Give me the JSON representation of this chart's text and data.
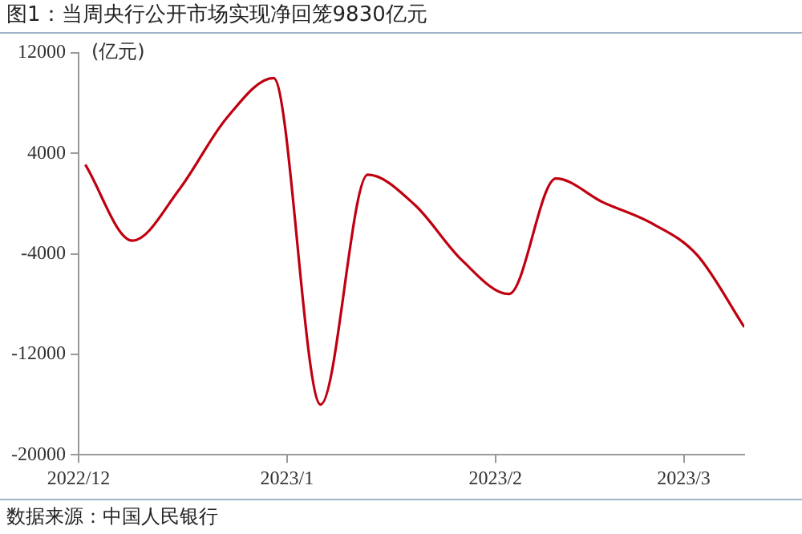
{
  "chart_data": {
    "type": "line",
    "title": "图1：当周央行公开市场实现净回笼9830亿元",
    "ylabel": "(亿元)",
    "annotations": [
      "数据来源：中国人民银行"
    ],
    "x": [
      "2022-12-02",
      "2022-12-09",
      "2022-12-16",
      "2022-12-23",
      "2022-12-30",
      "2023-01-06",
      "2023-01-13",
      "2023-01-20",
      "2023-01-27",
      "2023-02-03",
      "2023-02-10",
      "2023-02-17",
      "2023-02-24",
      "2023-03-03",
      "2023-03-10"
    ],
    "series": [
      {
        "color": "#c00010",
        "values": [
          3100,
          -2950,
          1150,
          6800,
          10000,
          -16000,
          2300,
          -100,
          -4500,
          -7200,
          2000,
          100,
          -1500,
          -4100,
          -9830
        ]
      }
    ],
    "xlim": [
      "2022-12-01",
      "2023-03-10"
    ],
    "xticks": [
      {
        "value": "2022-12-01",
        "label": "2022/12"
      },
      {
        "value": "2023-01-01",
        "label": "2023/1"
      },
      {
        "value": "2023-02-01",
        "label": "2023/2"
      },
      {
        "value": "2023-03-01",
        "label": "2023/3"
      }
    ],
    "ylim": [
      -20000,
      12000
    ],
    "yticks": [
      12000,
      4000,
      -4000,
      -12000,
      -20000
    ],
    "grid": false,
    "legend": false,
    "marker": "none",
    "line_style": "solid"
  }
}
